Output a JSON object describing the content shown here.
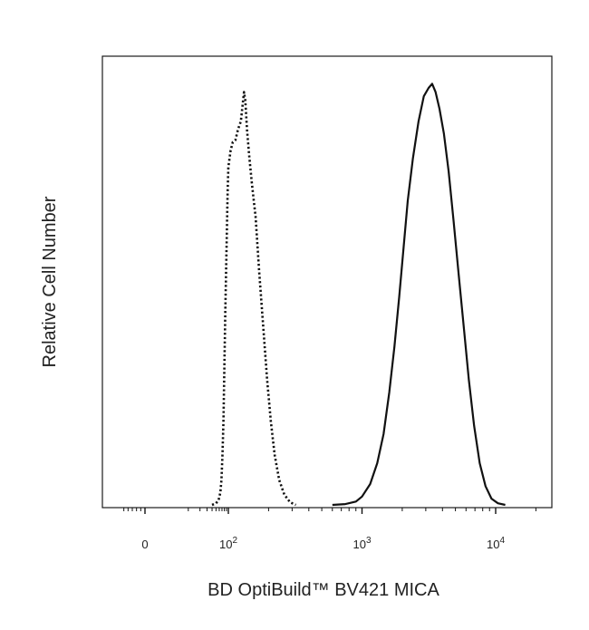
{
  "chart_data": {
    "type": "line",
    "title": "",
    "xlabel": "BD OptiBuild™ BV421 MICA",
    "ylabel": "Relative Cell Number",
    "x_scale": "biexponential",
    "xlim": [
      -60,
      25000
    ],
    "ylim": [
      0,
      1.1
    ],
    "grid": false,
    "legend": "none",
    "x_tick_labels": [
      {
        "value": 0,
        "base": "0",
        "exp": ""
      },
      {
        "value": 100,
        "base": "10",
        "exp": "2"
      },
      {
        "value": 1000,
        "base": "10",
        "exp": "3"
      },
      {
        "value": 10000,
        "base": "10",
        "exp": "4"
      }
    ],
    "series": [
      {
        "line_style": "dotted",
        "color": "#111111",
        "points": [
          [
            40,
            0.0
          ],
          [
            50,
            0.004
          ],
          [
            58,
            0.012
          ],
          [
            64,
            0.03
          ],
          [
            68,
            0.06
          ],
          [
            72,
            0.12
          ],
          [
            76,
            0.2
          ],
          [
            80,
            0.33
          ],
          [
            84,
            0.46
          ],
          [
            88,
            0.56
          ],
          [
            92,
            0.66
          ],
          [
            96,
            0.75
          ],
          [
            100,
            0.81
          ],
          [
            104,
            0.85
          ],
          [
            108,
            0.87
          ],
          [
            113,
            0.875
          ],
          [
            118,
            0.9
          ],
          [
            124,
            0.92
          ],
          [
            128,
            0.96
          ],
          [
            131,
            0.99
          ],
          [
            134,
            0.97
          ],
          [
            138,
            0.9
          ],
          [
            143,
            0.84
          ],
          [
            150,
            0.77
          ],
          [
            160,
            0.69
          ],
          [
            170,
            0.56
          ],
          [
            182,
            0.43
          ],
          [
            195,
            0.3
          ],
          [
            208,
            0.2
          ],
          [
            222,
            0.12
          ],
          [
            240,
            0.06
          ],
          [
            262,
            0.025
          ],
          [
            290,
            0.006
          ],
          [
            320,
            0.0
          ]
        ]
      },
      {
        "line_style": "solid",
        "color": "#111111",
        "points": [
          [
            600,
            0.0
          ],
          [
            750,
            0.002
          ],
          [
            900,
            0.008
          ],
          [
            1000,
            0.02
          ],
          [
            1150,
            0.05
          ],
          [
            1300,
            0.1
          ],
          [
            1450,
            0.17
          ],
          [
            1600,
            0.27
          ],
          [
            1750,
            0.38
          ],
          [
            1900,
            0.5
          ],
          [
            2050,
            0.62
          ],
          [
            2200,
            0.73
          ],
          [
            2400,
            0.83
          ],
          [
            2650,
            0.92
          ],
          [
            2900,
            0.98
          ],
          [
            3150,
            1.0
          ],
          [
            3350,
            1.01
          ],
          [
            3550,
            0.99
          ],
          [
            3800,
            0.95
          ],
          [
            4100,
            0.89
          ],
          [
            4450,
            0.8
          ],
          [
            4850,
            0.68
          ],
          [
            5300,
            0.55
          ],
          [
            5800,
            0.42
          ],
          [
            6300,
            0.3
          ],
          [
            6900,
            0.19
          ],
          [
            7600,
            0.1
          ],
          [
            8400,
            0.045
          ],
          [
            9300,
            0.015
          ],
          [
            10400,
            0.004
          ],
          [
            11800,
            0.0
          ]
        ]
      }
    ]
  }
}
